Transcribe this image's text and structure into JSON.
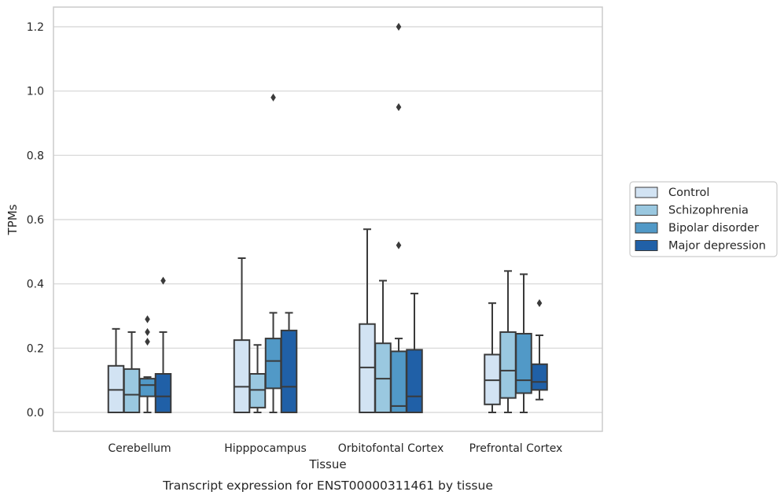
{
  "chart_data": {
    "type": "box",
    "title": "Transcript expression for ENST00000311461 by tissue",
    "xlabel": "Tissue",
    "ylabel": "TPMs",
    "ylim": [
      -0.06,
      1.26
    ],
    "yticks": [
      "0.0",
      "0.2",
      "0.4",
      "0.6",
      "0.8",
      "1.0",
      "1.2"
    ],
    "grid": true,
    "legend_position": "right",
    "categories": [
      "Cerebellum",
      "Hipppocampus",
      "Orbitofontal Cortex",
      "Prefrontal Cortex"
    ],
    "series": [
      {
        "name": "Control",
        "color": "#d2e3f3",
        "boxes": [
          {
            "whislo": 0.0,
            "q1": 0.0,
            "med": 0.07,
            "q3": 0.145,
            "whishi": 0.26,
            "fliers": []
          },
          {
            "whislo": 0.0,
            "q1": 0.0,
            "med": 0.08,
            "q3": 0.225,
            "whishi": 0.48,
            "fliers": []
          },
          {
            "whislo": 0.0,
            "q1": 0.0,
            "med": 0.14,
            "q3": 0.275,
            "whishi": 0.57,
            "fliers": []
          },
          {
            "whislo": 0.0,
            "q1": 0.025,
            "med": 0.1,
            "q3": 0.18,
            "whishi": 0.34,
            "fliers": []
          }
        ]
      },
      {
        "name": "Schizophrenia",
        "color": "#9ac8e0",
        "boxes": [
          {
            "whislo": 0.0,
            "q1": 0.0,
            "med": 0.055,
            "q3": 0.135,
            "whishi": 0.25,
            "fliers": []
          },
          {
            "whislo": 0.0,
            "q1": 0.015,
            "med": 0.07,
            "q3": 0.12,
            "whishi": 0.21,
            "fliers": []
          },
          {
            "whislo": 0.0,
            "q1": 0.0,
            "med": 0.105,
            "q3": 0.215,
            "whishi": 0.41,
            "fliers": []
          },
          {
            "whislo": 0.0,
            "q1": 0.045,
            "med": 0.13,
            "q3": 0.25,
            "whishi": 0.44,
            "fliers": []
          }
        ]
      },
      {
        "name": "Bipolar disorder",
        "color": "#5199c7",
        "boxes": [
          {
            "whislo": 0.0,
            "q1": 0.05,
            "med": 0.085,
            "q3": 0.105,
            "whishi": 0.11,
            "fliers": [
              0.22,
              0.25,
              0.29
            ]
          },
          {
            "whislo": 0.0,
            "q1": 0.075,
            "med": 0.16,
            "q3": 0.23,
            "whishi": 0.31,
            "fliers": [
              0.98
            ]
          },
          {
            "whislo": 0.0,
            "q1": 0.0,
            "med": 0.02,
            "q3": 0.19,
            "whishi": 0.23,
            "fliers": [
              0.52,
              0.95,
              1.2
            ]
          },
          {
            "whislo": 0.0,
            "q1": 0.06,
            "med": 0.1,
            "q3": 0.245,
            "whishi": 0.43,
            "fliers": []
          }
        ]
      },
      {
        "name": "Major depression",
        "color": "#2060a7",
        "boxes": [
          {
            "whislo": 0.0,
            "q1": 0.0,
            "med": 0.05,
            "q3": 0.12,
            "whishi": 0.25,
            "fliers": [
              0.41
            ]
          },
          {
            "whislo": 0.0,
            "q1": 0.0,
            "med": 0.08,
            "q3": 0.255,
            "whishi": 0.31,
            "fliers": []
          },
          {
            "whislo": 0.0,
            "q1": 0.0,
            "med": 0.05,
            "q3": 0.195,
            "whishi": 0.37,
            "fliers": []
          },
          {
            "whislo": 0.04,
            "q1": 0.07,
            "med": 0.095,
            "q3": 0.15,
            "whishi": 0.24,
            "fliers": [
              0.34
            ]
          }
        ]
      }
    ]
  }
}
